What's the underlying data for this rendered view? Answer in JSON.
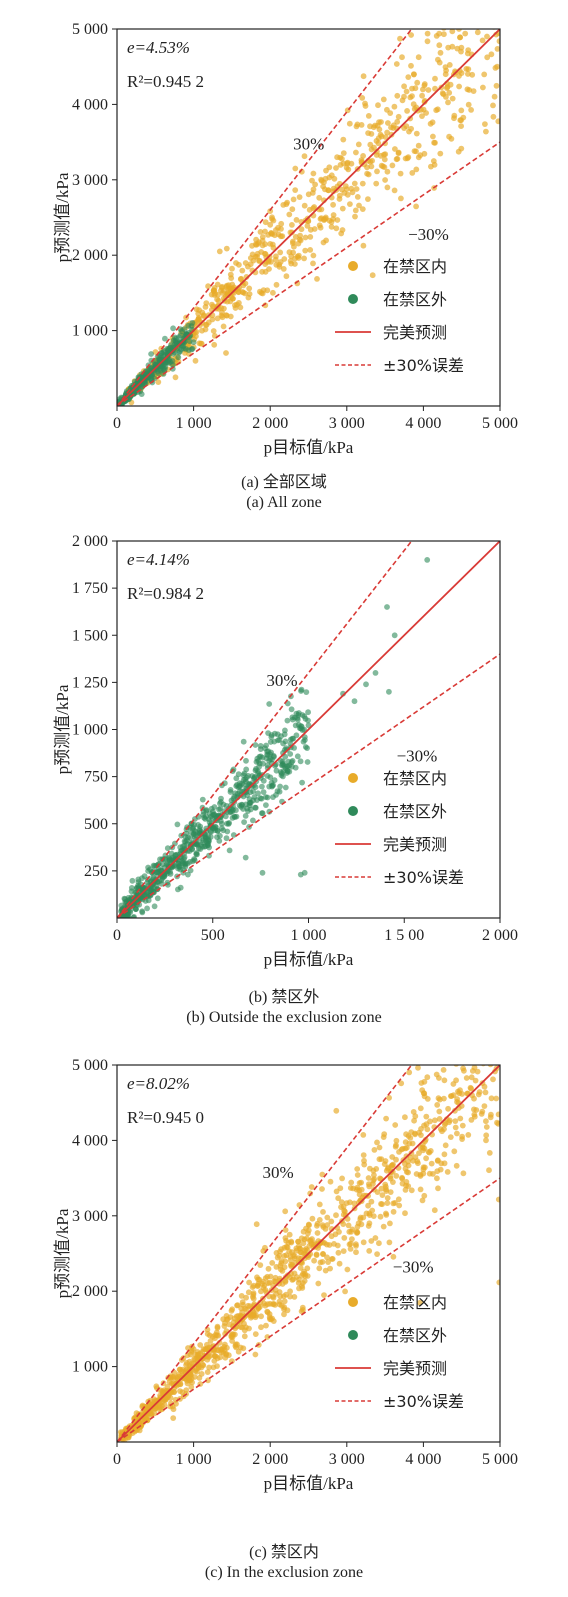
{
  "colors": {
    "inside": "#e8ab2a",
    "outside": "#2f8a5a",
    "perfect": "#d93a36",
    "band": "#d93a36",
    "axis": "#222222"
  },
  "legend": {
    "inside": "在禁区内",
    "outside": "在禁区外",
    "perfect": "完美预测",
    "band": "±30%误差"
  },
  "chart_data": [
    {
      "type": "scatter",
      "panel": "a",
      "xlabel": "p目标值/kPa",
      "ylabel": "p预测值/kPa",
      "xlim": [
        0,
        5000
      ],
      "ylim": [
        0,
        5000
      ],
      "xticks": [
        0,
        1000,
        2000,
        3000,
        4000,
        5000
      ],
      "xtick_labels": [
        "0",
        "1 000",
        "2 000",
        "3 000",
        "4 000",
        "5 000"
      ],
      "yticks": [
        1000,
        2000,
        3000,
        4000,
        5000
      ],
      "ytick_labels": [
        "1 000",
        "2 000",
        "3 000",
        "4 000",
        "5 000"
      ],
      "metric_e": "e=4.53%",
      "metric_r2": "R²=0.945 2",
      "annotation_plus": "30%",
      "annotation_minus": "−30%",
      "plus_anno_at": [
        2300,
        3400
      ],
      "minus_anno_at": [
        3800,
        2200
      ],
      "lines": {
        "perfect_slope": 1.0,
        "upper_slope": 1.3,
        "lower_slope": 0.7
      },
      "series": [
        {
          "key": "inside",
          "x_range": [
            150,
            5000
          ],
          "point_count": 800,
          "note": "dense cloud along y=x"
        },
        {
          "key": "outside",
          "x_range": [
            20,
            1000
          ],
          "point_count": 300,
          "note": "dense cloud along y=x"
        }
      ],
      "caption_cn": "(a) 全部区域",
      "caption_en": "(a) All zone"
    },
    {
      "type": "scatter",
      "panel": "b",
      "xlabel": "p目标值/kPa",
      "ylabel": "p预测值/kPa",
      "xlim": [
        0,
        2000
      ],
      "ylim": [
        0,
        2000
      ],
      "xticks": [
        0,
        500,
        1000,
        1500,
        2000
      ],
      "xtick_labels": [
        "0",
        "500",
        "1 000",
        "1 5 00",
        "2 000"
      ],
      "yticks": [
        250,
        500,
        750,
        1000,
        1250,
        1500,
        1750,
        2000
      ],
      "ytick_labels": [
        "250",
        "500",
        "750",
        "1 000",
        "1 250",
        "1 500",
        "1 750",
        "2 000"
      ],
      "metric_e": "e=4.14%",
      "metric_r2": "R²=0.984 2",
      "annotation_plus": "30%",
      "annotation_minus": "−30%",
      "plus_anno_at": [
        780,
        1230
      ],
      "minus_anno_at": [
        1460,
        830
      ],
      "lines": {
        "perfect_slope": 1.0,
        "upper_slope": 1.3,
        "lower_slope": 0.7
      },
      "series": [
        {
          "key": "outside",
          "x_range": [
            20,
            1000
          ],
          "point_count": 700,
          "note": "dense cloud along y=x"
        },
        {
          "key": "outside_sparse",
          "points": [
            [
              1300,
              1240
            ],
            [
              1350,
              1300
            ],
            [
              1410,
              1650
            ],
            [
              1450,
              1500
            ],
            [
              1620,
              1900
            ],
            [
              1180,
              1190
            ],
            [
              1240,
              1150
            ],
            [
              1420,
              1200
            ],
            [
              760,
              240
            ],
            [
              960,
              230
            ],
            [
              980,
              240
            ]
          ]
        }
      ],
      "caption_cn": "(b) 禁区外",
      "caption_en": "(b) Outside the exclusion zone"
    },
    {
      "type": "scatter",
      "panel": "c",
      "xlabel": "p目标值/kPa",
      "ylabel": "p预测值/kPa",
      "xlim": [
        0,
        5000
      ],
      "ylim": [
        0,
        5000
      ],
      "xticks": [
        0,
        1000,
        2000,
        3000,
        4000,
        5000
      ],
      "xtick_labels": [
        "0",
        "1 000",
        "2 000",
        "3 000",
        "4 000",
        "5 000"
      ],
      "yticks": [
        1000,
        2000,
        3000,
        4000,
        5000
      ],
      "ytick_labels": [
        "1 000",
        "2 000",
        "3 000",
        "4 000",
        "5 000"
      ],
      "metric_e": "e=8.02%",
      "metric_r2": "R²=0.945 0",
      "annotation_plus": "30%",
      "annotation_minus": "−30%",
      "plus_anno_at": [
        1900,
        3500
      ],
      "minus_anno_at": [
        3600,
        2250
      ],
      "lines": {
        "perfect_slope": 1.0,
        "upper_slope": 1.3,
        "lower_slope": 0.7
      },
      "series": [
        {
          "key": "inside",
          "x_range": [
            50,
            5000
          ],
          "point_count": 1100,
          "note": "dense cloud along y=x"
        }
      ],
      "caption_cn": "(c) 禁区内",
      "caption_en": "(c) In the exclusion zone"
    }
  ]
}
